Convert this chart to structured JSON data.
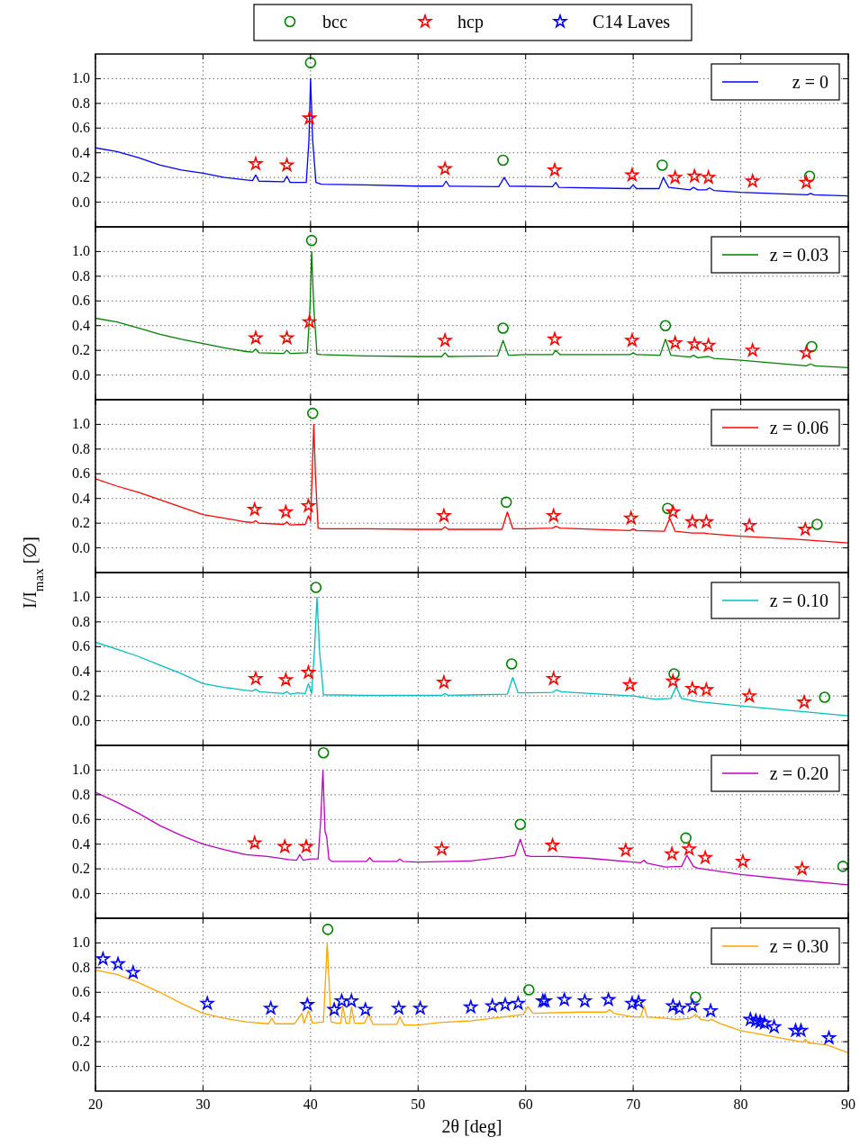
{
  "chart_data": [
    {
      "type": "line",
      "xlim": [
        20,
        90
      ],
      "xticks": [
        20,
        30,
        40,
        50,
        60,
        70,
        80,
        90
      ],
      "ylim": [
        -0.2,
        1.2
      ],
      "yticks": [
        {
          "value": 0,
          "label": "0.0"
        },
        {
          "value": 0.2,
          "label": "0.2"
        },
        {
          "value": 0.4,
          "label": "0.4"
        },
        {
          "value": 0.6,
          "label": "0.6"
        },
        {
          "value": 0.8,
          "label": "0.8"
        },
        {
          "value": 1,
          "label": "1.0"
        }
      ],
      "grid": true,
      "legend": "top right",
      "tick_labels": "y",
      "series": [
        {
          "name": "z = 0",
          "color": "#0000ff",
          "marker": "none",
          "x": [
            20,
            22,
            24,
            26,
            28,
            30,
            32,
            34,
            34.6,
            34.9,
            35.2,
            37.5,
            37.8,
            38.1,
            39.6,
            39.85,
            40.0,
            40.2,
            40.5,
            41,
            45,
            50,
            52.3,
            52.6,
            52.9,
            57.5,
            58.0,
            58.5,
            62.5,
            62.8,
            63.1,
            69.7,
            70.0,
            70.3,
            72.4,
            72.8,
            73.3,
            75.3,
            75.6,
            76.0,
            76.8,
            77.1,
            77.5,
            80,
            86.2,
            86.5,
            86.8,
            90
          ],
          "values": [
            0.44,
            0.41,
            0.36,
            0.3,
            0.26,
            0.235,
            0.2,
            0.18,
            0.175,
            0.22,
            0.17,
            0.165,
            0.21,
            0.16,
            0.16,
            0.5,
            1.0,
            0.5,
            0.16,
            0.145,
            0.14,
            0.13,
            0.13,
            0.17,
            0.13,
            0.125,
            0.2,
            0.13,
            0.125,
            0.16,
            0.12,
            0.11,
            0.14,
            0.11,
            0.11,
            0.2,
            0.12,
            0.1,
            0.12,
            0.1,
            0.1,
            0.115,
            0.095,
            0.08,
            0.06,
            0.07,
            0.06,
            0.05
          ]
        },
        {
          "name": "bcc",
          "type": "scatter",
          "color": "#008000",
          "marker": "circle",
          "x": [
            40.0,
            57.9,
            72.7,
            86.4
          ],
          "values": [
            1.13,
            0.34,
            0.3,
            0.21
          ]
        },
        {
          "name": "hcp",
          "type": "scatter",
          "color": "#ff0000",
          "marker": "star",
          "x": [
            34.9,
            37.8,
            39.9,
            52.5,
            62.7,
            69.9,
            73.9,
            75.7,
            77.0,
            81.1,
            86.1
          ],
          "values": [
            0.31,
            0.3,
            0.68,
            0.27,
            0.26,
            0.22,
            0.2,
            0.21,
            0.2,
            0.17,
            0.16
          ]
        }
      ]
    },
    {
      "type": "line",
      "xlim": [
        20,
        90
      ],
      "xticks": [
        20,
        30,
        40,
        50,
        60,
        70,
        80,
        90
      ],
      "ylim": [
        -0.2,
        1.2
      ],
      "yticks": [
        {
          "value": 0,
          "label": "0.0"
        },
        {
          "value": 0.2,
          "label": "0.2"
        },
        {
          "value": 0.4,
          "label": "0.4"
        },
        {
          "value": 0.6,
          "label": "0.6"
        },
        {
          "value": 0.8,
          "label": "0.8"
        },
        {
          "value": 1,
          "label": "1.0"
        }
      ],
      "grid": true,
      "legend": "top right",
      "tick_labels": "y",
      "series": [
        {
          "name": "z = 0.03",
          "color": "#008000",
          "marker": "none",
          "x": [
            20,
            22,
            24,
            26,
            28,
            30,
            32,
            34,
            34.6,
            34.9,
            35.2,
            37.5,
            37.8,
            38.1,
            39.7,
            39.95,
            40.1,
            40.3,
            40.6,
            41,
            45,
            50,
            52.2,
            52.5,
            52.8,
            57.4,
            57.9,
            58.4,
            60,
            62.5,
            62.8,
            63.2,
            69.7,
            70.0,
            70.3,
            72.5,
            73.0,
            73.5,
            75.3,
            75.6,
            76,
            77,
            77.5,
            80,
            86.1,
            86.5,
            86.9,
            90
          ],
          "values": [
            0.46,
            0.43,
            0.38,
            0.33,
            0.29,
            0.255,
            0.22,
            0.19,
            0.185,
            0.21,
            0.18,
            0.175,
            0.2,
            0.175,
            0.18,
            0.55,
            1.0,
            0.55,
            0.17,
            0.165,
            0.155,
            0.15,
            0.15,
            0.18,
            0.15,
            0.155,
            0.28,
            0.16,
            0.165,
            0.165,
            0.2,
            0.165,
            0.165,
            0.18,
            0.165,
            0.16,
            0.29,
            0.16,
            0.145,
            0.16,
            0.14,
            0.15,
            0.135,
            0.12,
            0.075,
            0.09,
            0.075,
            0.06
          ]
        },
        {
          "name": "bcc",
          "type": "scatter",
          "color": "#008000",
          "marker": "circle",
          "x": [
            40.1,
            57.9,
            73.0,
            86.6
          ],
          "values": [
            1.09,
            0.38,
            0.4,
            0.23
          ]
        },
        {
          "name": "hcp",
          "type": "scatter",
          "color": "#ff0000",
          "marker": "star",
          "x": [
            34.9,
            37.8,
            39.9,
            52.5,
            62.7,
            69.9,
            73.9,
            75.7,
            77.0,
            81.1,
            86.1
          ],
          "values": [
            0.3,
            0.3,
            0.43,
            0.28,
            0.29,
            0.28,
            0.26,
            0.25,
            0.24,
            0.2,
            0.18
          ]
        }
      ]
    },
    {
      "type": "line",
      "xlim": [
        20,
        90
      ],
      "xticks": [
        20,
        30,
        40,
        50,
        60,
        70,
        80,
        90
      ],
      "ylim": [
        -0.2,
        1.2
      ],
      "yticks": [
        {
          "value": 0,
          "label": "0.0"
        },
        {
          "value": 0.2,
          "label": "0.2"
        },
        {
          "value": 0.4,
          "label": "0.4"
        },
        {
          "value": 0.6,
          "label": "0.6"
        },
        {
          "value": 0.8,
          "label": "0.8"
        },
        {
          "value": 1,
          "label": "1.0"
        }
      ],
      "grid": true,
      "legend": "top right",
      "tick_labels": "y",
      "series": [
        {
          "name": "z = 0.06",
          "color": "#ff0000",
          "marker": "none",
          "x": [
            20,
            22,
            24,
            26,
            28,
            30,
            32,
            34,
            34.6,
            34.9,
            35.2,
            37.5,
            37.8,
            38.1,
            39.5,
            39.8,
            40.0,
            40.15,
            40.3,
            40.45,
            40.7,
            41,
            45,
            50,
            52.2,
            52.5,
            52.8,
            57.8,
            58.3,
            58.8,
            60,
            62.5,
            62.8,
            63.2,
            69.7,
            70.0,
            70.3,
            72.9,
            73.4,
            73.9,
            75.5,
            76.6,
            77,
            80,
            85,
            90
          ],
          "values": [
            0.56,
            0.5,
            0.45,
            0.39,
            0.33,
            0.27,
            0.24,
            0.21,
            0.205,
            0.22,
            0.2,
            0.19,
            0.21,
            0.185,
            0.19,
            0.26,
            0.22,
            0.6,
            1.0,
            0.6,
            0.16,
            0.155,
            0.155,
            0.15,
            0.15,
            0.17,
            0.15,
            0.15,
            0.29,
            0.155,
            0.155,
            0.16,
            0.175,
            0.16,
            0.14,
            0.155,
            0.14,
            0.135,
            0.24,
            0.135,
            0.12,
            0.12,
            0.115,
            0.095,
            0.07,
            0.04
          ]
        },
        {
          "name": "bcc",
          "type": "scatter",
          "color": "#008000",
          "marker": "circle",
          "x": [
            40.2,
            58.2,
            73.2,
            87.1
          ],
          "values": [
            1.09,
            0.37,
            0.32,
            0.19
          ]
        },
        {
          "name": "hcp",
          "type": "scatter",
          "color": "#ff0000",
          "marker": "star",
          "x": [
            34.8,
            37.7,
            39.8,
            52.4,
            62.6,
            69.8,
            73.7,
            75.5,
            76.8,
            80.8,
            86.0
          ],
          "values": [
            0.31,
            0.29,
            0.34,
            0.26,
            0.26,
            0.24,
            0.29,
            0.21,
            0.21,
            0.18,
            0.15
          ]
        }
      ]
    },
    {
      "type": "line",
      "xlim": [
        20,
        90
      ],
      "xticks": [
        20,
        30,
        40,
        50,
        60,
        70,
        80,
        90
      ],
      "ylim": [
        -0.2,
        1.2
      ],
      "yticks": [
        {
          "value": 0,
          "label": "0.0"
        },
        {
          "value": 0.2,
          "label": "0.2"
        },
        {
          "value": 0.4,
          "label": "0.4"
        },
        {
          "value": 0.6,
          "label": "0.6"
        },
        {
          "value": 0.8,
          "label": "0.8"
        },
        {
          "value": 1,
          "label": "1.0"
        }
      ],
      "grid": true,
      "legend": "top right",
      "tick_labels": "y",
      "ylabel": "I/I$_{max}$ [∅]",
      "series": [
        {
          "name": "z = 0.10",
          "color": "#00bfbf",
          "marker": "none",
          "x": [
            20,
            22,
            24,
            26,
            28,
            30,
            32,
            34,
            34.6,
            34.9,
            35.2,
            37.5,
            37.8,
            38.1,
            38.8,
            39.5,
            39.8,
            40.1,
            40.35,
            40.6,
            40.85,
            41.2,
            45,
            50,
            52.2,
            52.5,
            52.8,
            58.3,
            58.8,
            59.3,
            60,
            62.5,
            62.9,
            63.3,
            65,
            70,
            72,
            73.5,
            74.0,
            74.5,
            76,
            80,
            85,
            90
          ],
          "values": [
            0.635,
            0.58,
            0.52,
            0.45,
            0.38,
            0.3,
            0.27,
            0.245,
            0.24,
            0.255,
            0.235,
            0.22,
            0.235,
            0.215,
            0.225,
            0.22,
            0.3,
            0.22,
            0.55,
            1.0,
            0.55,
            0.21,
            0.205,
            0.205,
            0.205,
            0.22,
            0.205,
            0.215,
            0.35,
            0.225,
            0.225,
            0.23,
            0.25,
            0.235,
            0.225,
            0.2,
            0.175,
            0.18,
            0.275,
            0.18,
            0.155,
            0.12,
            0.08,
            0.04
          ]
        },
        {
          "name": "bcc",
          "type": "scatter",
          "color": "#008000",
          "marker": "circle",
          "x": [
            40.5,
            58.7,
            73.8,
            87.8
          ],
          "values": [
            1.08,
            0.46,
            0.38,
            0.19
          ]
        },
        {
          "name": "hcp",
          "type": "scatter",
          "color": "#ff0000",
          "marker": "star",
          "x": [
            34.9,
            37.7,
            39.8,
            52.4,
            62.6,
            69.7,
            73.7,
            75.5,
            76.8,
            80.8,
            85.9
          ],
          "values": [
            0.34,
            0.33,
            0.39,
            0.31,
            0.34,
            0.29,
            0.32,
            0.26,
            0.25,
            0.2,
            0.15
          ]
        }
      ]
    },
    {
      "type": "line",
      "xlim": [
        20,
        90
      ],
      "xticks": [
        20,
        30,
        40,
        50,
        60,
        70,
        80,
        90
      ],
      "ylim": [
        -0.2,
        1.2
      ],
      "yticks": [
        {
          "value": 0,
          "label": "0.0"
        },
        {
          "value": 0.2,
          "label": "0.2"
        },
        {
          "value": 0.4,
          "label": "0.4"
        },
        {
          "value": 0.6,
          "label": "0.6"
        },
        {
          "value": 0.8,
          "label": "0.8"
        },
        {
          "value": 1,
          "label": "1.0"
        }
      ],
      "grid": true,
      "legend": "top right",
      "tick_labels": "y",
      "series": [
        {
          "name": "z = 0.20",
          "color": "#bf00bf",
          "marker": "none",
          "x": [
            20,
            22,
            24,
            26,
            28,
            30,
            32,
            34,
            36,
            38,
            38.7,
            39.0,
            39.3,
            40,
            40.7,
            40.95,
            41.15,
            41.35,
            41.5,
            41.7,
            42,
            45.2,
            45.5,
            45.8,
            48.0,
            48.3,
            48.6,
            50,
            55,
            58,
            59.0,
            59.5,
            60.0,
            60.5,
            63,
            66,
            70,
            70.7,
            71.0,
            71.3,
            73,
            74.5,
            75.0,
            75.6,
            76,
            80,
            85,
            90
          ],
          "values": [
            0.82,
            0.74,
            0.65,
            0.55,
            0.47,
            0.4,
            0.355,
            0.315,
            0.3,
            0.275,
            0.27,
            0.315,
            0.27,
            0.28,
            0.28,
            0.6,
            1.0,
            0.5,
            0.46,
            0.28,
            0.26,
            0.26,
            0.29,
            0.26,
            0.26,
            0.28,
            0.26,
            0.255,
            0.265,
            0.295,
            0.31,
            0.44,
            0.31,
            0.3,
            0.3,
            0.285,
            0.255,
            0.25,
            0.27,
            0.245,
            0.215,
            0.22,
            0.31,
            0.22,
            0.205,
            0.155,
            0.11,
            0.07
          ]
        },
        {
          "name": "bcc",
          "type": "scatter",
          "color": "#008000",
          "marker": "circle",
          "x": [
            41.2,
            59.5,
            74.9,
            89.5
          ],
          "values": [
            1.14,
            0.56,
            0.45,
            0.22
          ]
        },
        {
          "name": "hcp",
          "type": "scatter",
          "color": "#ff0000",
          "marker": "star",
          "x": [
            34.8,
            37.6,
            39.6,
            52.2,
            62.5,
            69.3,
            73.6,
            75.2,
            76.7,
            80.2,
            85.7
          ],
          "values": [
            0.41,
            0.38,
            0.38,
            0.36,
            0.39,
            0.35,
            0.32,
            0.36,
            0.29,
            0.26,
            0.2
          ]
        }
      ]
    },
    {
      "type": "line",
      "xlim": [
        20,
        90
      ],
      "xticks": [
        20,
        30,
        40,
        50,
        60,
        70,
        80,
        90
      ],
      "ylim": [
        -0.2,
        1.2
      ],
      "yticks": [
        {
          "value": 0,
          "label": "0.0"
        },
        {
          "value": 0.2,
          "label": "0.2"
        },
        {
          "value": 0.4,
          "label": "0.4"
        },
        {
          "value": 0.6,
          "label": "0.6"
        },
        {
          "value": 0.8,
          "label": "0.8"
        },
        {
          "value": 1,
          "label": "1.0"
        }
      ],
      "grid": true,
      "legend": "top right",
      "xlabel": "2θ [deg]",
      "series": [
        {
          "name": "z = 0.30",
          "color": "#ffa500",
          "marker": "none",
          "x": [
            20,
            22,
            24,
            26,
            28,
            30,
            32,
            34,
            36.1,
            36.4,
            36.7,
            38.5,
            39.2,
            39.4,
            39.8,
            40.2,
            41.2,
            41.55,
            41.9,
            42.5,
            42.8,
            43.0,
            43.3,
            43.6,
            43.8,
            44.1,
            45.0,
            45.4,
            45.8,
            48.0,
            48.3,
            48.7,
            50,
            52,
            55,
            58,
            59.8,
            60.2,
            60.7,
            65,
            67.5,
            67.8,
            68.2,
            70,
            70.7,
            71.0,
            71.3,
            73,
            74,
            75.3,
            75.8,
            76.3,
            77,
            77.3,
            78,
            80,
            85,
            85.8,
            86.0,
            86.3,
            88,
            90
          ],
          "values": [
            0.78,
            0.745,
            0.68,
            0.6,
            0.51,
            0.43,
            0.39,
            0.36,
            0.345,
            0.39,
            0.345,
            0.345,
            0.43,
            0.35,
            0.45,
            0.35,
            0.36,
            1.0,
            0.36,
            0.35,
            0.35,
            0.49,
            0.35,
            0.35,
            0.48,
            0.35,
            0.35,
            0.42,
            0.34,
            0.34,
            0.4,
            0.335,
            0.335,
            0.355,
            0.37,
            0.4,
            0.42,
            0.485,
            0.43,
            0.44,
            0.44,
            0.46,
            0.43,
            0.4,
            0.4,
            0.49,
            0.4,
            0.39,
            0.38,
            0.39,
            0.42,
            0.38,
            0.37,
            0.38,
            0.35,
            0.29,
            0.21,
            0.195,
            0.22,
            0.19,
            0.175,
            0.11
          ]
        },
        {
          "name": "bcc",
          "type": "scatter",
          "color": "#008000",
          "marker": "circle",
          "x": [
            41.6,
            60.3,
            75.8
          ],
          "values": [
            1.11,
            0.62,
            0.56
          ]
        },
        {
          "name": "C14 Laves",
          "type": "scatter",
          "color": "#0000ff",
          "marker": "star",
          "x": [
            20.7,
            22.1,
            23.5,
            30.4,
            36.3,
            39.7,
            42.2,
            42.9,
            43.8,
            45.1,
            48.2,
            50.2,
            54.9,
            56.9,
            58.1,
            59.3,
            61.6,
            61.8,
            63.6,
            65.5,
            67.7,
            69.9,
            70.5,
            73.7,
            74.3,
            75.5,
            77.2,
            80.9,
            81.4,
            81.8,
            82.2,
            83.1,
            85.1,
            85.6,
            88.2
          ],
          "values": [
            0.87,
            0.83,
            0.76,
            0.51,
            0.47,
            0.5,
            0.46,
            0.53,
            0.53,
            0.46,
            0.47,
            0.47,
            0.48,
            0.49,
            0.5,
            0.51,
            0.53,
            0.53,
            0.54,
            0.53,
            0.54,
            0.51,
            0.52,
            0.49,
            0.47,
            0.49,
            0.45,
            0.38,
            0.37,
            0.36,
            0.35,
            0.32,
            0.29,
            0.29,
            0.23
          ]
        }
      ]
    }
  ]
}
